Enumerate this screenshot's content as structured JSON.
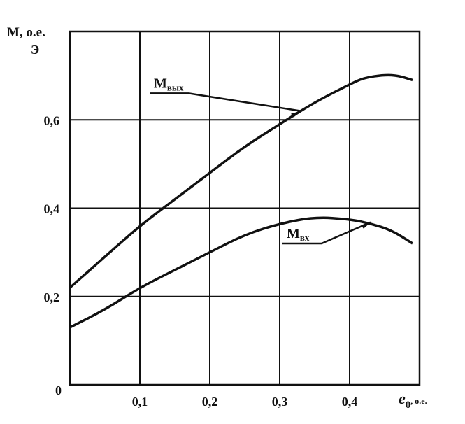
{
  "chart_data": {
    "type": "line",
    "xlabel": "e",
    "xlabel_sub": "0",
    "xlabel_unit": ", o.e.",
    "ylabel": "M, o.e.",
    "ylabel_sub": "Э",
    "xlim": [
      0,
      0.5
    ],
    "ylim": [
      0,
      0.8
    ],
    "x_ticks": [
      {
        "value": 0.1,
        "label": "0,1"
      },
      {
        "value": 0.2,
        "label": "0,2"
      },
      {
        "value": 0.3,
        "label": "0,3"
      },
      {
        "value": 0.4,
        "label": "0,4"
      }
    ],
    "y_ticks": [
      {
        "value": 0,
        "label": "0"
      },
      {
        "value": 0.2,
        "label": "0,2"
      },
      {
        "value": 0.4,
        "label": "0,4"
      },
      {
        "value": 0.6,
        "label": "0,6"
      }
    ],
    "grid": true,
    "series": [
      {
        "name": "M",
        "name_sub": "вых",
        "x": [
          0,
          0.05,
          0.1,
          0.15,
          0.2,
          0.25,
          0.3,
          0.35,
          0.4,
          0.42,
          0.45,
          0.47,
          0.49
        ],
        "y": [
          0.22,
          0.29,
          0.36,
          0.42,
          0.48,
          0.54,
          0.59,
          0.64,
          0.68,
          0.695,
          0.702,
          0.7,
          0.69
        ],
        "label_anchor": {
          "x": 0.12,
          "y": 0.66
        },
        "label_pointer": {
          "x": 0.33,
          "y": 0.62
        }
      },
      {
        "name": "M",
        "name_sub": "вх",
        "x": [
          0,
          0.05,
          0.1,
          0.15,
          0.2,
          0.25,
          0.3,
          0.35,
          0.4,
          0.43,
          0.46,
          0.49
        ],
        "y": [
          0.13,
          0.17,
          0.22,
          0.26,
          0.3,
          0.34,
          0.365,
          0.38,
          0.375,
          0.365,
          0.35,
          0.32
        ],
        "label_anchor": {
          "x": 0.31,
          "y": 0.32
        },
        "label_pointer": {
          "x": 0.43,
          "y": 0.368
        }
      }
    ]
  }
}
